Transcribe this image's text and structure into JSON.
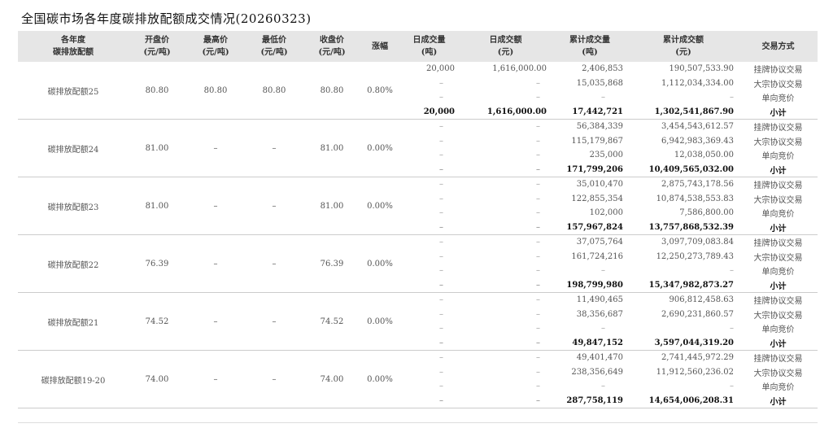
{
  "title": "全国碳市场各年度碳排放配额成交情况(20260323)",
  "headers": [
    [
      "各年度",
      "碳排放配额"
    ],
    [
      "开盘价",
      "(元/吨)"
    ],
    [
      "最高价",
      "(元/吨)"
    ],
    [
      "最低价",
      "(元/吨)"
    ],
    [
      "收盘价",
      "(元/吨)"
    ],
    [
      "涨幅",
      ""
    ],
    [
      "日成交量",
      "(吨)"
    ],
    [
      "日成交额",
      "(元)"
    ],
    [
      "累计成交量",
      "(吨)"
    ],
    [
      "累计成交额",
      "(元)"
    ],
    [
      "交易方式",
      ""
    ]
  ],
  "groups": [
    {
      "name": "碳排放配额25",
      "open": "80.80",
      "high": "80.80",
      "low": "80.80",
      "close": "80.80",
      "change": "0.80%",
      "rows": [
        {
          "dvol": "20,000",
          "damt": "1,616,000.00",
          "cvol": "2,406,853",
          "camt": "190,507,533.90",
          "method": "挂牌协议交易"
        },
        {
          "dvol": "–",
          "damt": "–",
          "cvol": "15,035,868",
          "camt": "1,112,034,334.00",
          "method": "大宗协议交易"
        },
        {
          "dvol": "–",
          "damt": "–",
          "cvol": "–",
          "camt": "–",
          "method": "单向竞价"
        },
        {
          "dvol": "20,000",
          "damt": "1,616,000.00",
          "cvol": "17,442,721",
          "camt": "1,302,541,867.90",
          "method": "小计"
        }
      ]
    },
    {
      "name": "碳排放配额24",
      "open": "81.00",
      "high": "–",
      "low": "–",
      "close": "81.00",
      "change": "0.00%",
      "rows": [
        {
          "dvol": "–",
          "damt": "–",
          "cvol": "56,384,339",
          "camt": "3,454,543,612.57",
          "method": "挂牌协议交易"
        },
        {
          "dvol": "–",
          "damt": "–",
          "cvol": "115,179,867",
          "camt": "6,942,983,369.43",
          "method": "大宗协议交易"
        },
        {
          "dvol": "–",
          "damt": "–",
          "cvol": "235,000",
          "camt": "12,038,050.00",
          "method": "单向竞价"
        },
        {
          "dvol": "–",
          "damt": "–",
          "cvol": "171,799,206",
          "camt": "10,409,565,032.00",
          "method": "小计"
        }
      ]
    },
    {
      "name": "碳排放配额23",
      "open": "81.00",
      "high": "–",
      "low": "–",
      "close": "81.00",
      "change": "0.00%",
      "rows": [
        {
          "dvol": "–",
          "damt": "–",
          "cvol": "35,010,470",
          "camt": "2,875,743,178.56",
          "method": "挂牌协议交易"
        },
        {
          "dvol": "–",
          "damt": "–",
          "cvol": "122,855,354",
          "camt": "10,874,538,553.83",
          "method": "大宗协议交易"
        },
        {
          "dvol": "–",
          "damt": "–",
          "cvol": "102,000",
          "camt": "7,586,800.00",
          "method": "单向竞价"
        },
        {
          "dvol": "–",
          "damt": "–",
          "cvol": "157,967,824",
          "camt": "13,757,868,532.39",
          "method": "小计"
        }
      ]
    },
    {
      "name": "碳排放配额22",
      "open": "76.39",
      "high": "–",
      "low": "–",
      "close": "76.39",
      "change": "0.00%",
      "rows": [
        {
          "dvol": "–",
          "damt": "–",
          "cvol": "37,075,764",
          "camt": "3,097,709,083.84",
          "method": "挂牌协议交易"
        },
        {
          "dvol": "–",
          "damt": "–",
          "cvol": "161,724,216",
          "camt": "12,250,273,789.43",
          "method": "大宗协议交易"
        },
        {
          "dvol": "–",
          "damt": "–",
          "cvol": "–",
          "camt": "–",
          "method": "单向竞价"
        },
        {
          "dvol": "–",
          "damt": "–",
          "cvol": "198,799,980",
          "camt": "15,347,982,873.27",
          "method": "小计"
        }
      ]
    },
    {
      "name": "碳排放配额21",
      "open": "74.52",
      "high": "–",
      "low": "–",
      "close": "74.52",
      "change": "0.00%",
      "rows": [
        {
          "dvol": "–",
          "damt": "–",
          "cvol": "11,490,465",
          "camt": "906,812,458.63",
          "method": "挂牌协议交易"
        },
        {
          "dvol": "–",
          "damt": "–",
          "cvol": "38,356,687",
          "camt": "2,690,231,860.57",
          "method": "大宗协议交易"
        },
        {
          "dvol": "–",
          "damt": "–",
          "cvol": "–",
          "camt": "–",
          "method": "单向竞价"
        },
        {
          "dvol": "–",
          "damt": "–",
          "cvol": "49,847,152",
          "camt": "3,597,044,319.20",
          "method": "小计"
        }
      ]
    },
    {
      "name": "碳排放配额19-20",
      "open": "74.00",
      "high": "–",
      "low": "–",
      "close": "74.00",
      "change": "0.00%",
      "rows": [
        {
          "dvol": "–",
          "damt": "–",
          "cvol": "49,401,470",
          "camt": "2,741,445,972.29",
          "method": "挂牌协议交易"
        },
        {
          "dvol": "–",
          "damt": "–",
          "cvol": "238,356,649",
          "camt": "11,912,560,236.02",
          "method": "大宗协议交易"
        },
        {
          "dvol": "–",
          "damt": "–",
          "cvol": "–",
          "camt": "–",
          "method": "单向竞价"
        },
        {
          "dvol": "–",
          "damt": "–",
          "cvol": "287,758,119",
          "camt": "14,654,006,208.31",
          "method": "小计"
        }
      ]
    }
  ]
}
